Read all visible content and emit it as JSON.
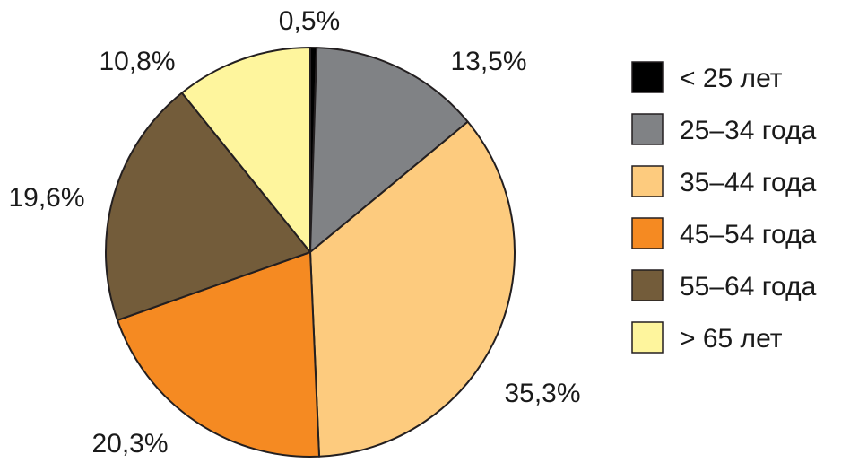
{
  "chart_data": {
    "type": "pie",
    "title": "",
    "categories": [
      "< 25 лет",
      "25–34 года",
      "35–44 года",
      "45–54 года",
      "55–64 года",
      "> 65 лет"
    ],
    "values": [
      0.5,
      13.5,
      35.3,
      20.3,
      19.6,
      10.8
    ],
    "data_labels": [
      "0,5%",
      "13,5%",
      "35,3%",
      "20,3%",
      "19,6%",
      "10,8%"
    ],
    "colors": [
      "#000000",
      "#808285",
      "#FDCB7E",
      "#F58A22",
      "#735C3A",
      "#FEF59D"
    ],
    "start_angle": "12 o'clock",
    "direction": "clockwise",
    "legend_position": "right"
  }
}
